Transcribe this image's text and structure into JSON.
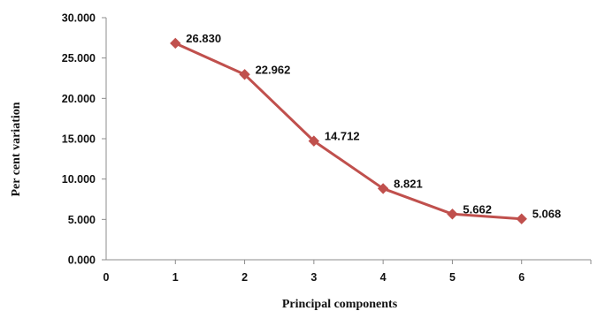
{
  "chart_data": {
    "type": "line",
    "title": "",
    "xlabel": "Principal components",
    "ylabel": "Per cent variation",
    "x": [
      1,
      2,
      3,
      4,
      5,
      6
    ],
    "x_ticks": [
      "0",
      "1",
      "2",
      "3",
      "4",
      "5",
      "6"
    ],
    "y_ticks": [
      "0.000",
      "5.000",
      "10.000",
      "15.000",
      "20.000",
      "25.000",
      "30.000"
    ],
    "xlim": [
      0,
      7
    ],
    "ylim": [
      0,
      30
    ],
    "grid": false,
    "legend": "none",
    "series": [
      {
        "values": [
          26.83,
          22.962,
          14.712,
          8.821,
          5.662,
          5.068
        ],
        "labels": [
          "26.830",
          "22.962",
          "14.712",
          "8.821",
          "5.662",
          "5.068"
        ],
        "color": "#c0504d",
        "marker": "diamond"
      }
    ]
  }
}
